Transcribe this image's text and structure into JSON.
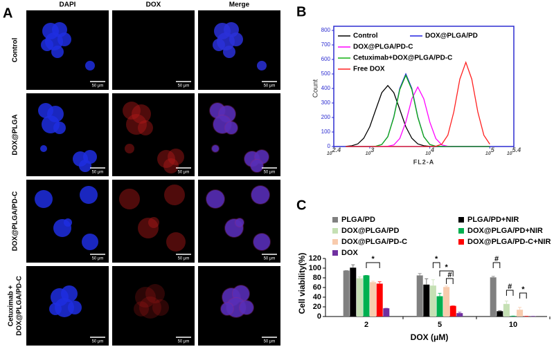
{
  "panel_labels": [
    "A",
    "B",
    "C"
  ],
  "panel_a": {
    "columns": [
      "DAPI",
      "DOX",
      "Merge"
    ],
    "rows": [
      [
        "Control"
      ],
      [
        "DOX@PLGA"
      ],
      [
        "DOX@PLGA/PD-C"
      ],
      [
        "Cetuximab +",
        "DOX@PLGA/PD-C"
      ]
    ],
    "scale_bar": "50 μm"
  },
  "chart_data": [
    {
      "type": "line",
      "xlabel": "FL2-A",
      "ylabel": "Count",
      "xscale": "log",
      "axis_color": "#2b2bd0",
      "xlim": [
        251.19,
        251189
      ],
      "xticks": [
        {
          "value": 251.19,
          "label": "10^2.4"
        },
        {
          "value": 1000,
          "label": "10^3"
        },
        {
          "value": 10000,
          "label": "10^4"
        },
        {
          "value": 100000,
          "label": "10^5"
        },
        {
          "value": 251189,
          "label": "10^5.4"
        }
      ],
      "ylim": [
        0,
        800
      ],
      "yticks": [
        0,
        100,
        200,
        300,
        400,
        500,
        600,
        700,
        800
      ],
      "x": [
        398,
        501,
        631,
        794,
        1000,
        1259,
        1585,
        1995,
        2512,
        3162,
        3981,
        5012,
        6310,
        7943,
        10000,
        12589,
        15849,
        19953,
        25119,
        31623,
        39811,
        50119,
        63096,
        79433,
        100000
      ],
      "series": [
        {
          "name": "Control",
          "color": "#000000",
          "values": [
            1,
            5,
            18,
            57,
            136,
            255,
            371,
            420,
            371,
            255,
            136,
            57,
            18,
            5,
            1,
            0,
            0,
            0,
            0,
            0,
            0,
            0,
            0,
            0,
            0
          ]
        },
        {
          "name": "DOX@PLGA/PD",
          "color": "#2020e0",
          "values": [
            0,
            0,
            0,
            0,
            0,
            2,
            14,
            68,
            205,
            400,
            500,
            400,
            205,
            68,
            14,
            2,
            0,
            0,
            0,
            0,
            0,
            0,
            0,
            0,
            0
          ]
        },
        {
          "name": "DOX@PLGA/PD-C",
          "color": "#ff00ff",
          "values": [
            0,
            0,
            0,
            0,
            0,
            0,
            0,
            2,
            11,
            55,
            168,
            328,
            410,
            328,
            168,
            55,
            11,
            2,
            0,
            0,
            0,
            0,
            0,
            0,
            0
          ]
        },
        {
          "name": "Cetuximab+DOX@PLGA/PD-C",
          "color": "#10b010",
          "values": [
            0,
            0,
            0,
            0,
            0,
            2,
            14,
            67,
            201,
            392,
            490,
            392,
            201,
            67,
            14,
            2,
            0,
            0,
            0,
            0,
            0,
            0,
            0,
            0,
            0
          ]
        },
        {
          "name": "Free DOX",
          "color": "#ff2020",
          "values": [
            0,
            0,
            0,
            0,
            0,
            0,
            0,
            0,
            0,
            0,
            0,
            0,
            0,
            0,
            0,
            2,
            16,
            78,
            238,
            464,
            580,
            464,
            238,
            78,
            16
          ]
        }
      ]
    },
    {
      "type": "bar",
      "xlabel": "DOX (μM)",
      "ylabel": "Cell viability(%)",
      "categories": [
        "2",
        "5",
        "10"
      ],
      "ylim": [
        0,
        120
      ],
      "yticks": [
        0,
        20,
        40,
        60,
        80,
        100,
        120
      ],
      "series": [
        {
          "name": "PLGA/PD",
          "color": "#808080",
          "values": [
            95,
            85,
            81
          ],
          "errors": [
            0,
            4,
            2
          ]
        },
        {
          "name": "PLGA/PD+NIR",
          "color": "#000000",
          "values": [
            101,
            66,
            11
          ],
          "errors": [
            6,
            12,
            1
          ]
        },
        {
          "name": "DOX@PLGA/PD",
          "color": "#c5e0b4",
          "values": [
            79,
            64,
            26
          ],
          "errors": [
            3,
            12,
            6
          ]
        },
        {
          "name": "DOX@PLGA/PD+NIR",
          "color": "#00b050",
          "values": [
            85,
            42,
            1
          ],
          "errors": [
            0,
            6,
            0
          ]
        },
        {
          "name": "DOX@PLGA/PD-C",
          "color": "#f8cbad",
          "values": [
            71,
            61,
            14
          ],
          "errors": [
            2,
            2,
            5
          ]
        },
        {
          "name": "DOX@PLGA/PD-C+NIR",
          "color": "#ff0000",
          "values": [
            68,
            22,
            0.5
          ],
          "errors": [
            4,
            0,
            0
          ]
        },
        {
          "name": "DOX",
          "color": "#7030a0",
          "values": [
            17,
            7,
            0.5
          ],
          "errors": [
            0,
            2,
            0
          ]
        }
      ],
      "significance": [
        "*",
        "*",
        "*",
        "#",
        "#",
        "#",
        "*"
      ]
    }
  ]
}
